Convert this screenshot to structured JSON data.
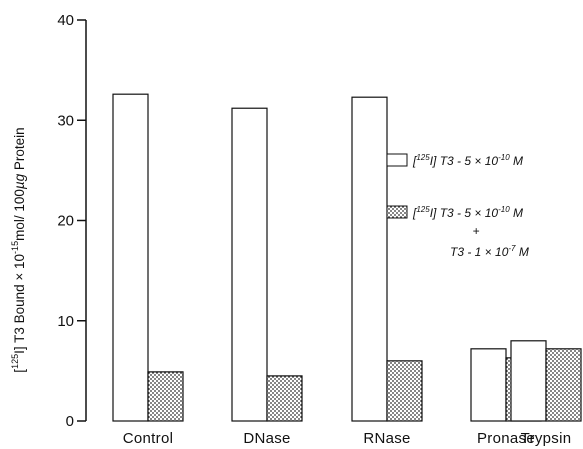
{
  "chart_data": {
    "type": "bar",
    "title": "",
    "xlabel": "",
    "ylabel": "[125I] T3 Bound × 10^-15 mol/ 100 µg Protein",
    "ylim": [
      0,
      40
    ],
    "yticks": [
      0,
      10,
      20,
      30,
      40
    ],
    "categories": [
      "Control",
      "DNase",
      "RNase",
      "Pronase",
      "Trypsin"
    ],
    "series": [
      {
        "name": "[125I] T3 - 5×10-10 M",
        "fill": "white",
        "values": [
          32.6,
          31.2,
          32.3,
          7.2,
          8.0
        ]
      },
      {
        "name": "[125I] T3 - 5×10-10 M + T3 - 1×10-7 M",
        "fill": "stippled",
        "values": [
          4.9,
          4.5,
          6.0,
          6.3,
          7.2
        ]
      }
    ],
    "legend_position": "right",
    "grid": false
  },
  "legend": {
    "open_entry": "[125I] T3 - 5×10-10 M",
    "hatched_line1": "[125I] T3 - 5×10-10 M",
    "plus": "+",
    "hatched_line2": "T3 - 1×10-7 M"
  }
}
